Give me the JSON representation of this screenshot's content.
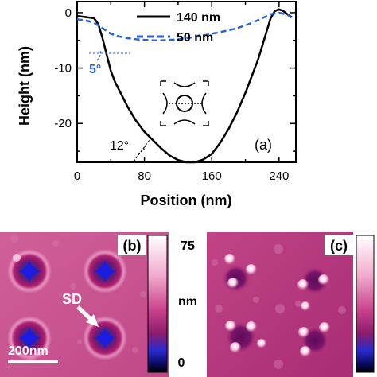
{
  "chart_data": [
    {
      "panel_label": "(a)",
      "type": "line",
      "xlabel": "Position (nm)",
      "ylabel": "Height (nm)",
      "xlim": [
        0,
        260
      ],
      "ylim": [
        -27,
        2
      ],
      "xticks": [
        0,
        80,
        160,
        240
      ],
      "yticks": [
        0,
        -10,
        -20
      ],
      "grid": false,
      "legend_position": "top-center",
      "series": [
        {
          "name": "140 nm",
          "color": "#000000",
          "style": "solid",
          "x": [
            0,
            10,
            20,
            25,
            30,
            35,
            40,
            45,
            50,
            60,
            70,
            80,
            90,
            100,
            110,
            120,
            130,
            140,
            150,
            160,
            170,
            180,
            190,
            200,
            205,
            210,
            215,
            220,
            225,
            230,
            235,
            240,
            245,
            250,
            255
          ],
          "y": [
            -0.6,
            -0.8,
            -1.0,
            -2.0,
            -4.5,
            -7.5,
            -10.5,
            -12.5,
            -14.0,
            -17.0,
            -19.5,
            -21.5,
            -23.0,
            -24.5,
            -25.8,
            -26.6,
            -27.0,
            -27.0,
            -26.5,
            -25.5,
            -23.5,
            -21.0,
            -18.0,
            -14.5,
            -12.5,
            -10.5,
            -8.5,
            -6.0,
            -3.5,
            -1.0,
            0.3,
            0.6,
            0.3,
            -0.3,
            -0.8
          ]
        },
        {
          "name": "50  nm",
          "color": "#2b63d6",
          "style": "dashed",
          "x": [
            0,
            10,
            20,
            30,
            40,
            50,
            60,
            70,
            80,
            90,
            100,
            110,
            120,
            130,
            140,
            150,
            160,
            170,
            180,
            190,
            200,
            210,
            220,
            230,
            240,
            250,
            255
          ],
          "y": [
            -1.2,
            -1.4,
            -1.8,
            -2.8,
            -3.8,
            -4.3,
            -4.6,
            -4.8,
            -4.9,
            -5.0,
            -5.0,
            -4.9,
            -4.8,
            -4.6,
            -4.4,
            -4.1,
            -3.8,
            -3.5,
            -3.2,
            -2.8,
            -2.3,
            -1.7,
            -1.0,
            -0.3,
            0.0,
            -0.4,
            -0.9
          ]
        }
      ],
      "annotations": [
        {
          "text": "5°",
          "color": "#2b63d6"
        },
        {
          "text": "12°",
          "color": "#000000"
        }
      ]
    },
    {
      "panel_label": "(b)",
      "type": "heatmap",
      "colorbar": {
        "max_label": "75",
        "min_label": "0",
        "unit": "nm"
      },
      "annotations": [
        {
          "text": "SD"
        },
        {
          "text": "200nm"
        }
      ]
    },
    {
      "panel_label": "(c)",
      "type": "heatmap"
    }
  ],
  "colors": {
    "line_140": "#000000",
    "line_50": "#2b63d6",
    "map_base_b": "#c8508c",
    "map_base_c": "#b8387e"
  }
}
